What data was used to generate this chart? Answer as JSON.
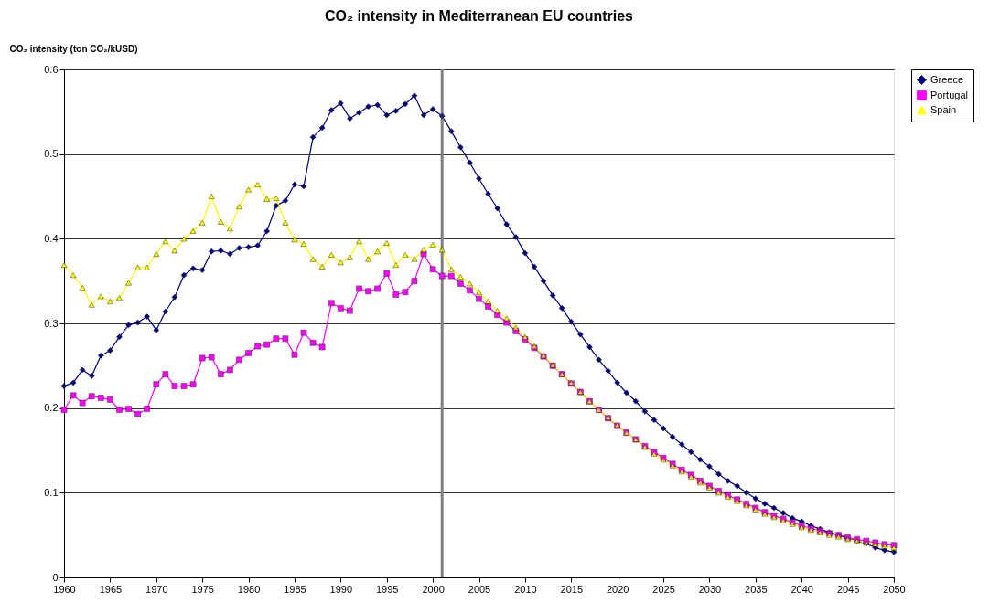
{
  "chart_data": {
    "type": "line",
    "title": "CO₂ intensity in Mediterranean EU countries",
    "ylabel": "CO₂ intensity (ton CO₂/kUSD)",
    "xlim": [
      1960,
      2050
    ],
    "xticks": [
      1960,
      1965,
      1970,
      1975,
      1980,
      1985,
      1990,
      1995,
      2000,
      2005,
      2010,
      2015,
      2020,
      2025,
      2030,
      2035,
      2040,
      2045,
      2050
    ],
    "ylim": [
      0,
      0.6
    ],
    "yticks": [
      0,
      0.1,
      0.2,
      0.3,
      0.4,
      0.5,
      0.6
    ],
    "grid": "y",
    "legend": "right",
    "line_style": "solid",
    "ref_lines": [
      {
        "axis": "x",
        "value": 2001,
        "color": "#808080"
      }
    ],
    "x": [
      1960,
      1961,
      1962,
      1963,
      1964,
      1965,
      1966,
      1967,
      1968,
      1969,
      1970,
      1971,
      1972,
      1973,
      1974,
      1975,
      1976,
      1977,
      1978,
      1979,
      1980,
      1981,
      1982,
      1983,
      1984,
      1985,
      1986,
      1987,
      1988,
      1989,
      1990,
      1991,
      1992,
      1993,
      1994,
      1995,
      1996,
      1997,
      1998,
      1999,
      2000,
      2001,
      2002,
      2003,
      2004,
      2005,
      2006,
      2007,
      2008,
      2009,
      2010,
      2011,
      2012,
      2013,
      2014,
      2015,
      2016,
      2017,
      2018,
      2019,
      2020,
      2021,
      2022,
      2023,
      2024,
      2025,
      2026,
      2027,
      2028,
      2029,
      2030,
      2031,
      2032,
      2033,
      2034,
      2035,
      2036,
      2037,
      2038,
      2039,
      2040,
      2041,
      2042,
      2043,
      2044,
      2045,
      2046,
      2047,
      2048,
      2049,
      2050
    ],
    "series": [
      {
        "name": "Greece",
        "color": "#000080",
        "marker": "diamond",
        "values": [
          0.226,
          0.23,
          0.245,
          0.238,
          0.262,
          0.268,
          0.284,
          0.298,
          0.301,
          0.308,
          0.292,
          0.314,
          0.331,
          0.357,
          0.365,
          0.363,
          0.385,
          0.386,
          0.382,
          0.389,
          0.39,
          0.392,
          0.409,
          0.439,
          0.445,
          0.464,
          0.462,
          0.52,
          0.531,
          0.552,
          0.56,
          0.542,
          0.549,
          0.556,
          0.558,
          0.546,
          0.551,
          0.559,
          0.569,
          0.546,
          0.553,
          0.545,
          0.527,
          0.508,
          0.49,
          0.471,
          0.453,
          0.436,
          0.417,
          0.402,
          0.383,
          0.367,
          0.35,
          0.333,
          0.318,
          0.302,
          0.287,
          0.272,
          0.257,
          0.244,
          0.23,
          0.218,
          0.208,
          0.196,
          0.186,
          0.176,
          0.166,
          0.157,
          0.148,
          0.139,
          0.131,
          0.122,
          0.114,
          0.108,
          0.1,
          0.093,
          0.087,
          0.082,
          0.076,
          0.07,
          0.066,
          0.061,
          0.057,
          0.053,
          0.05,
          0.046,
          0.043,
          0.04,
          0.035,
          0.032,
          0.03
        ]
      },
      {
        "name": "Portugal",
        "color": "#ff00ff",
        "marker": "square",
        "values": [
          0.198,
          0.215,
          0.206,
          0.214,
          0.212,
          0.21,
          0.198,
          0.199,
          0.193,
          0.199,
          0.228,
          0.24,
          0.226,
          0.226,
          0.228,
          0.259,
          0.26,
          0.24,
          0.245,
          0.257,
          0.265,
          0.273,
          0.275,
          0.282,
          0.282,
          0.263,
          0.289,
          0.277,
          0.272,
          0.324,
          0.318,
          0.315,
          0.341,
          0.338,
          0.341,
          0.359,
          0.334,
          0.337,
          0.35,
          0.382,
          0.364,
          0.356,
          0.356,
          0.347,
          0.339,
          0.329,
          0.32,
          0.31,
          0.301,
          0.291,
          0.281,
          0.271,
          0.261,
          0.25,
          0.24,
          0.229,
          0.219,
          0.208,
          0.198,
          0.188,
          0.179,
          0.171,
          0.163,
          0.155,
          0.148,
          0.141,
          0.134,
          0.127,
          0.121,
          0.114,
          0.108,
          0.102,
          0.097,
          0.092,
          0.087,
          0.082,
          0.077,
          0.073,
          0.069,
          0.065,
          0.061,
          0.058,
          0.055,
          0.052,
          0.05,
          0.047,
          0.045,
          0.043,
          0.041,
          0.039,
          0.038
        ]
      },
      {
        "name": "Spain",
        "color": "#ffff00",
        "marker": "triangle",
        "values": [
          0.369,
          0.357,
          0.342,
          0.322,
          0.332,
          0.326,
          0.33,
          0.348,
          0.366,
          0.366,
          0.382,
          0.397,
          0.386,
          0.4,
          0.409,
          0.419,
          0.45,
          0.42,
          0.412,
          0.438,
          0.458,
          0.464,
          0.447,
          0.448,
          0.419,
          0.399,
          0.394,
          0.376,
          0.367,
          0.381,
          0.372,
          0.378,
          0.397,
          0.376,
          0.385,
          0.395,
          0.369,
          0.381,
          0.376,
          0.387,
          0.393,
          0.387,
          0.364,
          0.355,
          0.347,
          0.337,
          0.326,
          0.315,
          0.306,
          0.295,
          0.284,
          0.273,
          0.262,
          0.251,
          0.24,
          0.23,
          0.219,
          0.208,
          0.198,
          0.189,
          0.18,
          0.171,
          0.163,
          0.154,
          0.146,
          0.139,
          0.132,
          0.125,
          0.119,
          0.112,
          0.106,
          0.1,
          0.095,
          0.09,
          0.085,
          0.08,
          0.075,
          0.071,
          0.067,
          0.063,
          0.059,
          0.056,
          0.053,
          0.05,
          0.048,
          0.045,
          0.043,
          0.041,
          0.039,
          0.037,
          0.035
        ]
      }
    ]
  }
}
